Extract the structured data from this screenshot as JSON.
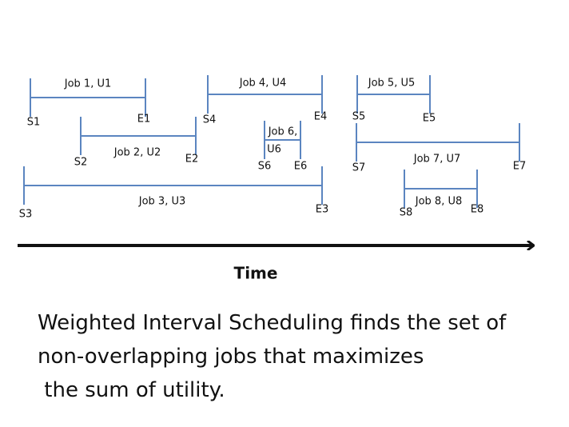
{
  "jobs": [
    {
      "label_lines": [
        "Job 1, U1"
      ],
      "start": "S1",
      "end": "E1"
    },
    {
      "label_lines": [
        "Job 2, U2"
      ],
      "start": "S2",
      "end": "E2"
    },
    {
      "label_lines": [
        "Job 3, U3"
      ],
      "start": "S3",
      "end": "E3"
    },
    {
      "label_lines": [
        "Job 4, U4"
      ],
      "start": "S4",
      "end": "E4"
    },
    {
      "label_lines": [
        "Job 5, U5"
      ],
      "start": "S5",
      "end": "E5"
    },
    {
      "label_lines": [
        "Job 6,",
        "U6"
      ],
      "start": "S6",
      "end": "E6"
    },
    {
      "label_lines": [
        "Job 7, U7"
      ],
      "start": "S7",
      "end": "E7"
    },
    {
      "label_lines": [
        "Job 8, U8"
      ],
      "start": "S8",
      "end": "E8"
    }
  ],
  "axis_label": "Time",
  "caption": [
    "Weighted Interval Scheduling finds the set of",
    "non-overlapping jobs that maximizes",
    " the sum of utility."
  ]
}
